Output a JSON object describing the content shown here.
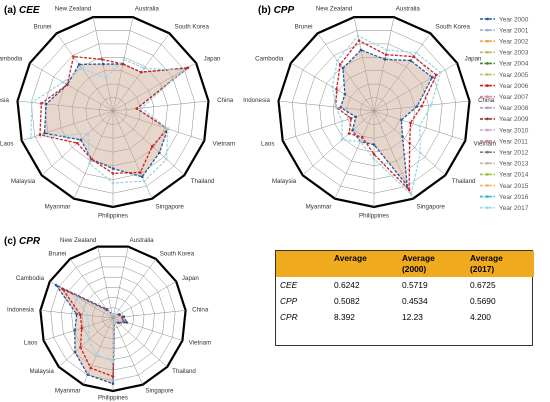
{
  "panels": {
    "a": {
      "label": "(a)",
      "metric": "CEE"
    },
    "b": {
      "label": "(b)",
      "metric": "CPP"
    },
    "c": {
      "label": "(c)",
      "metric": "CPR"
    }
  },
  "legend_items": [
    "Year 2000",
    "Year 2001",
    "Year 2002",
    "Year 2003",
    "Year 2004",
    "Year 2005",
    "Year 2006",
    "Year 2007",
    "Year 2008",
    "Year 2009",
    "Year 2010",
    "Year 2011",
    "Year 2012",
    "Year 2013",
    "Year 2014",
    "Year 2015",
    "Year 2016",
    "Year 2017"
  ],
  "colors": {
    "series": [
      "#2b5797",
      "#9aaed0",
      "#e3a74a",
      "#c9b26a",
      "#3a8f35",
      "#b6c45a",
      "#cc2323",
      "#d98fb0",
      "#aa9cc9",
      "#8c3b2e",
      "#c9a3c9",
      "#d47fa0",
      "#7b7b7b",
      "#b5b5b5",
      "#9cc241",
      "#f4b06d",
      "#3bb7c9",
      "#9fd6e6"
    ],
    "fill": "#c9a38f",
    "table_header": "#f0aa1e"
  },
  "table": {
    "headers": [
      "",
      "Average",
      "Average\n(2000)",
      "Average\n(2017)"
    ],
    "header_lines": [
      [
        "Average"
      ],
      [
        "Average",
        "(2000)"
      ],
      [
        "Average",
        "(2017)"
      ]
    ],
    "rows": [
      {
        "indicator": "CEE",
        "avg": "0.6242",
        "avg2000": "0.5719",
        "avg2017": "0.6725"
      },
      {
        "indicator": "CPP",
        "avg": "0.5082",
        "avg2000": "0.4534",
        "avg2017": "0.5690"
      },
      {
        "indicator": "CPR",
        "avg": "8.392",
        "avg2000": "12.23",
        "avg2017": "4.200"
      }
    ]
  },
  "chart_data": [
    {
      "type": "radar",
      "title": "(a) CEE",
      "categories": [
        "Australia",
        "South Korea",
        "Japan",
        "China",
        "Vietnam",
        "Thailand",
        "Singapore",
        "Philippines",
        "Myanmar",
        "Malaysia",
        "Laos",
        "Indonesia",
        "Cambodia",
        "Brunei",
        "New Zealand"
      ],
      "rings": 7,
      "series": [
        {
          "name": "Year 2000",
          "values": [
            0.5,
            0.5,
            0.9,
            0.25,
            0.6,
            0.65,
            0.75,
            0.6,
            0.55,
            0.45,
            0.75,
            0.7,
            0.55,
            0.6,
            0.5
          ]
        },
        {
          "name": "Year 2006",
          "values": [
            0.5,
            0.5,
            0.9,
            0.25,
            0.6,
            0.55,
            0.7,
            0.65,
            0.55,
            0.5,
            0.8,
            0.75,
            0.55,
            0.7,
            0.55
          ]
        },
        {
          "name": "Year 2017",
          "values": [
            0.55,
            0.55,
            0.85,
            0.3,
            0.6,
            0.75,
            0.8,
            0.75,
            0.6,
            0.35,
            0.9,
            0.85,
            0.6,
            0.55,
            0.35
          ]
        }
      ]
    },
    {
      "type": "radar",
      "title": "(b) CPP",
      "categories": [
        "Australia",
        "South Korea",
        "Japan",
        "China",
        "Vietnam",
        "Thailand",
        "Singapore",
        "Philippines",
        "Myanmar",
        "Malaysia",
        "Laos",
        "Indonesia",
        "Cambodia",
        "Brunei",
        "New Zealand"
      ],
      "rings": 7,
      "series": [
        {
          "name": "Year 2000",
          "values": [
            0.55,
            0.65,
            0.7,
            0.45,
            0.3,
            0.4,
            0.85,
            0.35,
            0.35,
            0.3,
            0.2,
            0.35,
            0.35,
            0.55,
            0.65
          ]
        },
        {
          "name": "Year 2006",
          "values": [
            0.6,
            0.7,
            0.75,
            0.5,
            0.4,
            0.5,
            0.9,
            0.45,
            0.3,
            0.35,
            0.25,
            0.4,
            0.45,
            0.6,
            0.75
          ]
        },
        {
          "name": "Year 2017",
          "values": [
            0.65,
            0.75,
            0.8,
            0.6,
            0.5,
            0.65,
            0.95,
            0.5,
            0.35,
            0.45,
            0.35,
            0.4,
            0.5,
            0.65,
            0.8
          ]
        }
      ]
    },
    {
      "type": "radar",
      "title": "(c) CPR",
      "categories": [
        "Australia",
        "South Korea",
        "Japan",
        "China",
        "Vietnam",
        "Thailand",
        "Singapore",
        "Philippines",
        "Myanmar",
        "Malaysia",
        "Laos",
        "Indonesia",
        "Cambodia",
        "Brunei",
        "New Zealand"
      ],
      "rings": 7,
      "series": [
        {
          "name": "Year 2000",
          "values": [
            0.05,
            0.05,
            0.1,
            0.15,
            0.2,
            0.1,
            0.05,
            0.9,
            0.85,
            0.7,
            0.55,
            0.5,
            0.9,
            0.15,
            0.05
          ]
        },
        {
          "name": "Year 2006",
          "values": [
            0.05,
            0.05,
            0.08,
            0.12,
            0.15,
            0.08,
            0.05,
            0.8,
            0.75,
            0.6,
            0.45,
            0.45,
            0.8,
            0.12,
            0.05
          ]
        },
        {
          "name": "Year 2017",
          "values": [
            0.05,
            0.05,
            0.06,
            0.1,
            0.12,
            0.06,
            0.05,
            0.6,
            0.55,
            0.45,
            0.35,
            0.35,
            0.6,
            0.1,
            0.05
          ]
        }
      ]
    }
  ]
}
